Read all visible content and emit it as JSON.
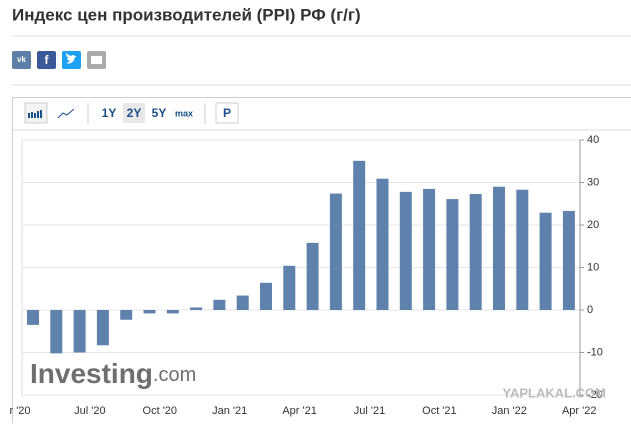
{
  "header": {
    "title": "Индекс цен производителей (PPI) РФ (г/г)"
  },
  "toolbar": {
    "ranges": [
      "1Y",
      "2Y",
      "5Y",
      "max"
    ],
    "mode": "P"
  },
  "watermarks": {
    "brand": "Investing",
    "brand_suffix": ".com",
    "site": "YAPLAKAL.COM"
  },
  "chart_data": {
    "type": "bar",
    "categories": [
      "r '20",
      null,
      null,
      "Jul '20",
      null,
      null,
      "Oct '20",
      null,
      null,
      "Jan '21",
      null,
      null,
      "Apr '21",
      null,
      null,
      "Jul '21",
      null,
      null,
      "Oct '21",
      null,
      null,
      "Jan '22",
      null,
      null,
      "Apr '22"
    ],
    "values": [
      -3.5,
      -10.2,
      -10,
      -8.3,
      -2.3,
      -0.8,
      -0.8,
      0.6,
      2.4,
      3.4,
      6.4,
      10.4,
      15.8,
      27.4,
      35.1,
      30.9,
      27.8,
      28.5,
      26.1,
      27.3,
      29,
      28.3,
      22.9,
      23.3,
      null
    ],
    "color": "#5f82ad",
    "ylim": [
      -20,
      40
    ],
    "yticks": [
      -20,
      -10,
      0,
      10,
      20,
      30,
      40
    ],
    "grid": true
  }
}
